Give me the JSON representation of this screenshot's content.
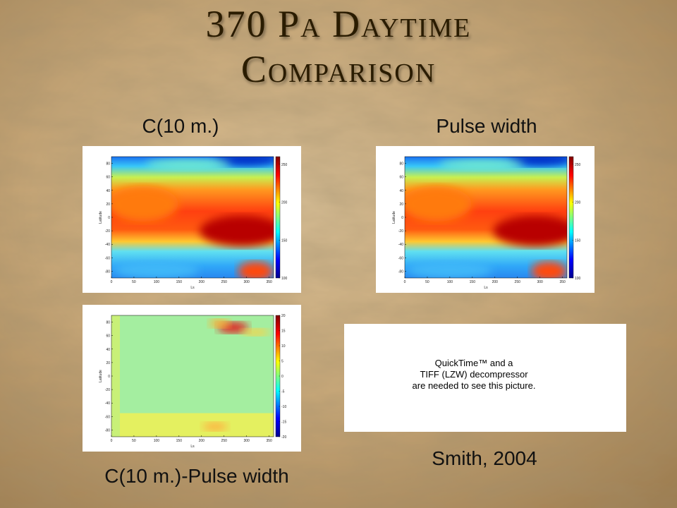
{
  "title": [
    "370 Pa Daytime",
    "Comparison"
  ],
  "captions": [
    "C(10 m.)",
    "Pulse width",
    "C(10 m.)-Pulse width",
    "Smith, 2004"
  ],
  "placeholder": [
    "QuickTime™ and a",
    "TIFF (LZW) decompressor",
    "are needed to see this picture."
  ],
  "plots": [
    {
      "kind": "field",
      "xlabel": "Ls",
      "ylabel": "Latitude",
      "xlim": [
        0,
        360
      ],
      "ylim": [
        -90,
        90
      ],
      "xticks": [
        0,
        50,
        100,
        150,
        200,
        250,
        300,
        350
      ],
      "yticks": [
        -80,
        -60,
        -40,
        -20,
        0,
        20,
        40,
        60,
        80
      ],
      "clim": [
        100,
        260
      ],
      "cticks": [
        100,
        150,
        200,
        250
      ]
    },
    {
      "kind": "field",
      "xlabel": "Ls",
      "ylabel": "Latitude",
      "xlim": [
        0,
        360
      ],
      "ylim": [
        -90,
        90
      ],
      "xticks": [
        0,
        50,
        100,
        150,
        200,
        250,
        300,
        350
      ],
      "yticks": [
        -80,
        -60,
        -40,
        -20,
        0,
        20,
        40,
        60,
        80
      ],
      "clim": [
        100,
        260
      ],
      "cticks": [
        100,
        150,
        200,
        250
      ]
    },
    {
      "kind": "difference",
      "xlabel": "Ls",
      "ylabel": "Latitude",
      "xlim": [
        0,
        360
      ],
      "ylim": [
        -90,
        90
      ],
      "xticks": [
        0,
        50,
        100,
        150,
        200,
        250,
        300,
        350
      ],
      "yticks": [
        -80,
        -60,
        -40,
        -20,
        0,
        20,
        40,
        60,
        80
      ],
      "clim": [
        -20,
        20
      ],
      "cticks": [
        -20,
        -15,
        -10,
        -5,
        0,
        5,
        10,
        15,
        20
      ]
    }
  ]
}
